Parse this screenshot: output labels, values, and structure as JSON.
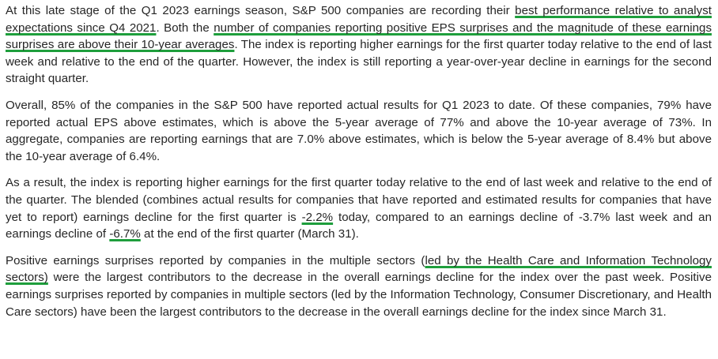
{
  "accent_color": "#1e9e3c",
  "paragraphs": [
    {
      "segments": [
        {
          "text": "At this late stage of the Q1 2023 earnings season, S&P 500 companies are recording their ",
          "highlight": false
        },
        {
          "text": "best performance relative to analyst expectations since Q4 2021",
          "highlight": true
        },
        {
          "text": ". Both the ",
          "highlight": false
        },
        {
          "text": "number of companies reporting positive EPS surprises and the magnitude of these earnings surprises are above their 10-year averages",
          "highlight": true
        },
        {
          "text": ". The index is reporting higher earnings for the first quarter today relative to the end of last week and relative to the end of the quarter. However, the index is still reporting a year-over-year decline in earnings for the second straight quarter.",
          "highlight": false
        }
      ]
    },
    {
      "segments": [
        {
          "text": "Overall, 85% of the companies in the S&P 500 have reported actual results for Q1 2023 to date. Of these companies, 79% have reported actual EPS above estimates, which is above the 5-year average of 77% and above the 10-year average of 73%. In aggregate, companies are reporting earnings that are 7.0% above estimates, which is below the 5-year average of 8.4% but above the 10-year average of 6.4%.",
          "highlight": false
        }
      ]
    },
    {
      "segments": [
        {
          "text": "As a result, the index is reporting higher earnings for the first quarter today relative to the end of last week and relative to the end of the quarter. The blended (combines actual results for companies that have reported and estimated results for companies that have yet to report) earnings decline for the first quarter is ",
          "highlight": false
        },
        {
          "text": "-2.2%",
          "highlight": true
        },
        {
          "text": " today, compared to an earnings decline of -3.7% last week and an earnings decline of ",
          "highlight": false
        },
        {
          "text": "-6.7%",
          "highlight": true
        },
        {
          "text": " at the end of the first quarter (March 31).",
          "highlight": false
        }
      ]
    },
    {
      "segments": [
        {
          "text": "Positive earnings surprises reported by companies in the multiple sectors (",
          "highlight": false
        },
        {
          "text": "led by the Health Care and Information Technology sectors)",
          "highlight": true
        },
        {
          "text": " were the largest contributors to the decrease in the overall earnings decline for the index over the past week. Positive earnings surprises reported by companies in multiple sectors (led by the Information Technology, Consumer Discretionary, and Health Care sectors) have been the largest contributors to the decrease in the overall earnings decline for the index since March 31.",
          "highlight": false
        }
      ]
    }
  ]
}
